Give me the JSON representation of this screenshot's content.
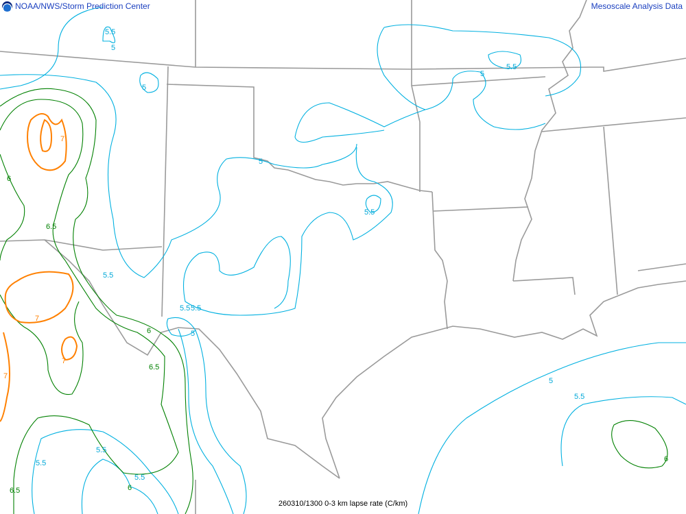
{
  "header": {
    "left_title": "NOAA/NWS/Storm Prediction Center",
    "right_title": "Mesoscale Analysis Data",
    "logo": "noaa-logo"
  },
  "footer": {
    "caption": "260310/1300 0-3 km lapse rate (C/km)"
  },
  "colors": {
    "contour_5_5.5": "#00b0e0",
    "contour_6_6.5": "#008000",
    "contour_7": "#ff8000",
    "borders": "#9a9a9a"
  },
  "contour_labels": [
    "5.5",
    "5",
    "5",
    "5",
    "5.5",
    "5",
    "5.5",
    "5.5",
    "5.5",
    "5",
    "5.5",
    "5.5",
    "5.5",
    "5.5",
    "5",
    "5.5",
    "6",
    "7",
    "6.5",
    "7",
    "7",
    "7",
    "6",
    "6.5",
    "6.5",
    "6",
    "6"
  ]
}
